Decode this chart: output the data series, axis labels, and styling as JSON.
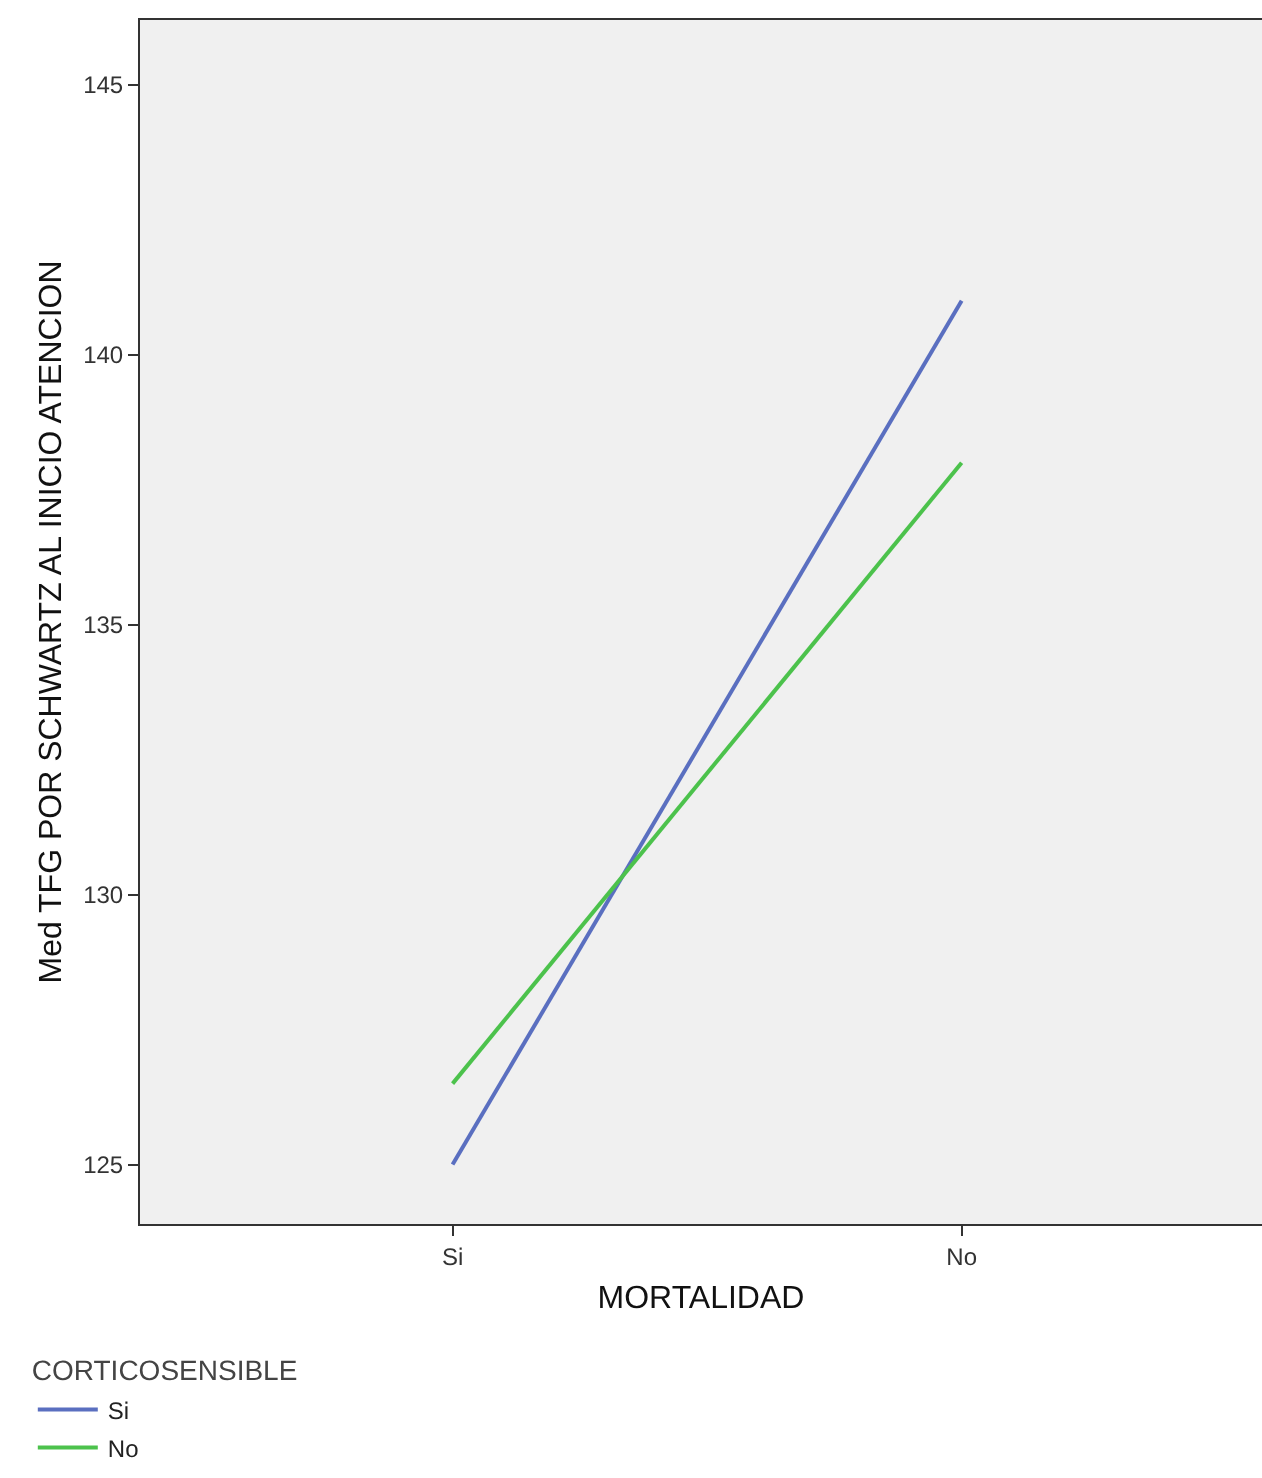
{
  "chart_data": {
    "type": "line",
    "xlabel": "MORTALIDAD",
    "ylabel": "Med TFG POR SCHWARTZ AL INICIO ATENCION",
    "legend_title": "CORTICOSENSIBLE",
    "categories": [
      "Si",
      "No"
    ],
    "series": [
      {
        "name": "Si",
        "color": "#5a6fc0",
        "values": [
          125,
          141
        ]
      },
      {
        "name": "No",
        "color": "#4cc24c",
        "values": [
          126.5,
          138
        ]
      }
    ],
    "ylim": [
      123.9,
      146.2
    ],
    "yticks": [
      125,
      130,
      135,
      140,
      145
    ],
    "grid": false,
    "legend": "bottom left",
    "marker": "none",
    "line_style": "solid"
  }
}
